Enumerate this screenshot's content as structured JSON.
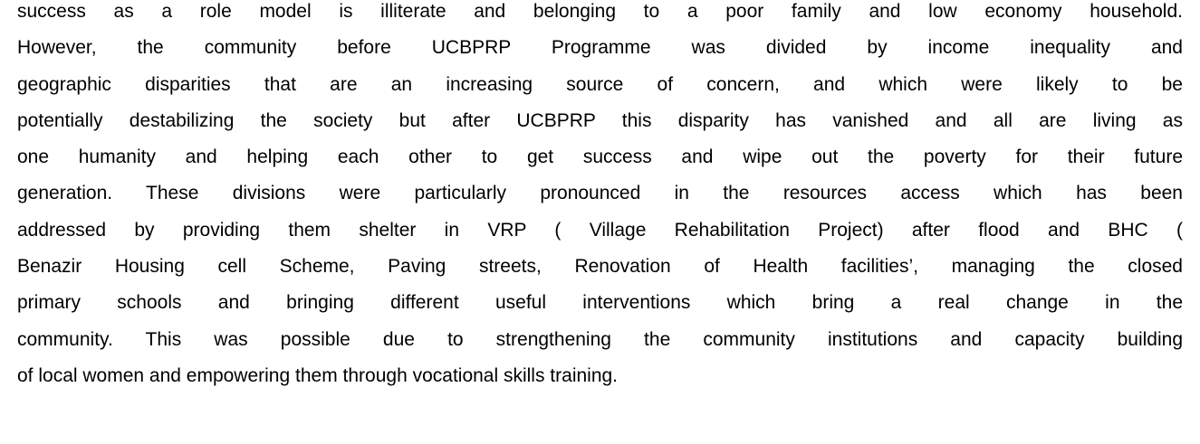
{
  "paragraph": {
    "lines": [
      "success as a role model is illiterate and belonging to a poor family and low economy household.",
      "However, the community before UCBPRP Programme was divided by income inequality and",
      "geographic disparities that are an increasing source of concern, and which were likely to be",
      "potentially destabilizing the society but after UCBPRP this disparity has vanished and all are living as",
      "one humanity and helping each other to get success and wipe out the poverty for their future",
      "generation. These divisions were particularly pronounced in the resources access which has been",
      "addressed by providing them shelter in VRP ( Village Rehabilitation Project) after flood and BHC (",
      "Benazir Housing cell Scheme, Paving streets, Renovation of Health facilities’, managing the closed",
      "primary schools and bringing different useful interventions which bring a real change in the",
      "community. This was possible due to strengthening the community institutions and capacity building",
      "of local women and empowering them through vocational skills training."
    ]
  }
}
